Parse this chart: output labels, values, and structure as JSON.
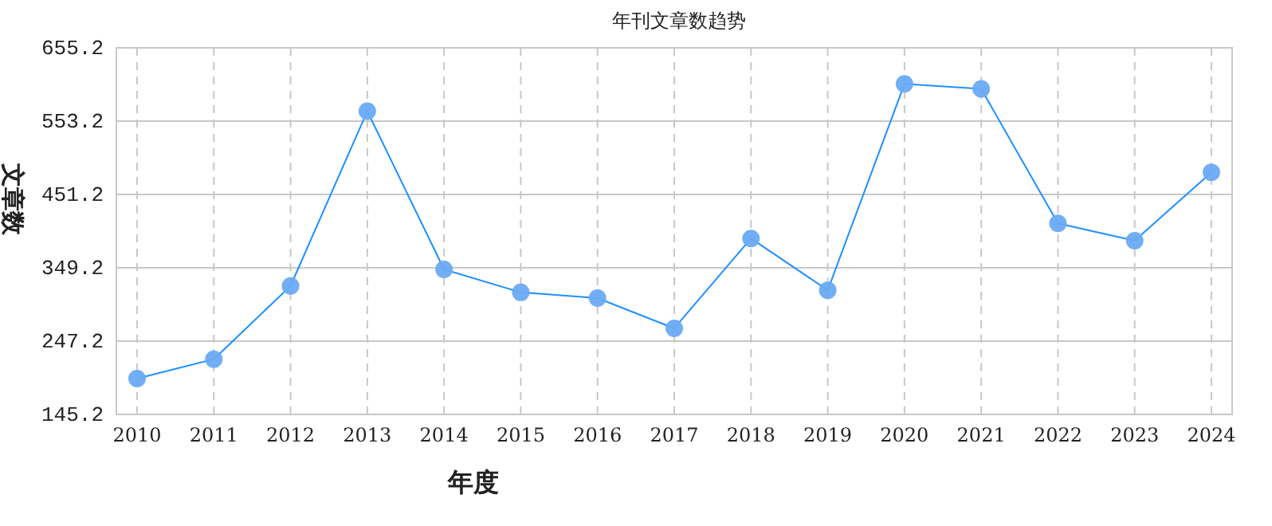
{
  "chart_data": {
    "type": "line",
    "title": "年刊文章数趋势",
    "xlabel": "年度",
    "ylabel": "文章数",
    "categories": [
      "2010",
      "2011",
      "2012",
      "2013",
      "2014",
      "2015",
      "2016",
      "2017",
      "2018",
      "2019",
      "2020",
      "2021",
      "2022",
      "2023",
      "2024"
    ],
    "series": [
      {
        "color": "#1e90ff",
        "values": [
          195,
          222,
          324,
          567,
          347,
          315,
          307,
          265,
          390,
          318,
          605,
          598,
          411,
          387,
          482
        ]
      }
    ],
    "ylim": [
      145.2,
      655.2
    ],
    "yticks": [
      145.2,
      247.2,
      349.2,
      451.2,
      553.2,
      655.2
    ],
    "grid": true,
    "marker": "circle",
    "line_style": "solid"
  }
}
